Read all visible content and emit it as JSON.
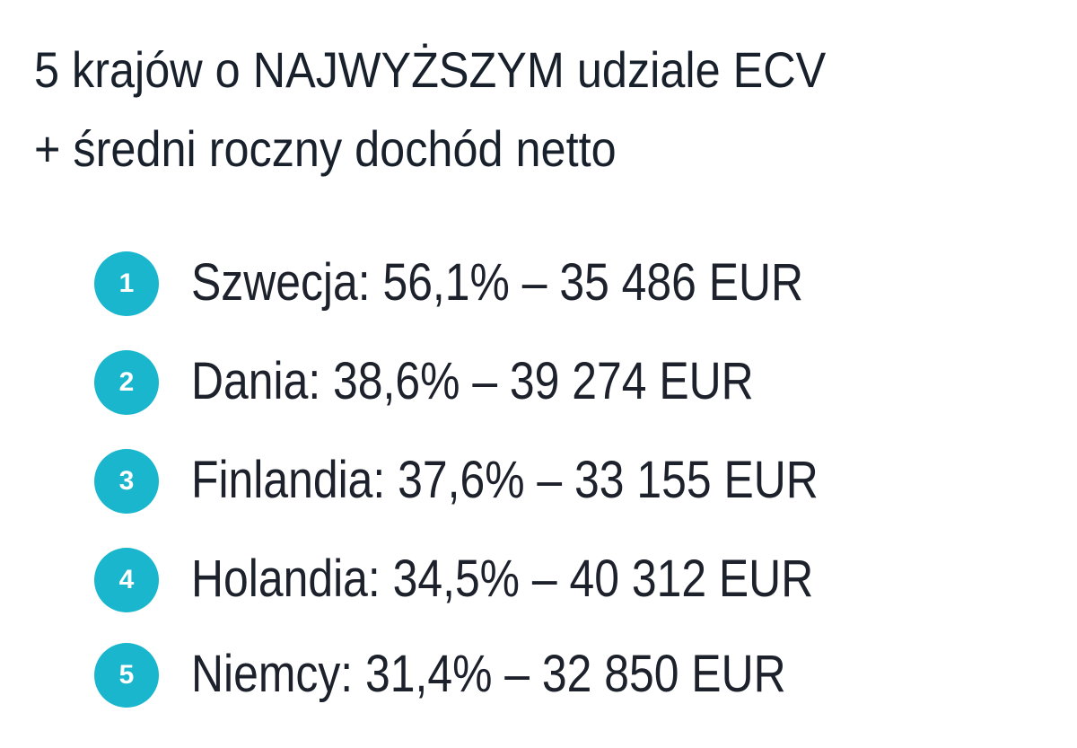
{
  "header": {
    "title": [
      "5 krajów o NAJWYŻSZYM udziale ECV",
      "+ średni roczny dochód netto"
    ]
  },
  "list": {
    "items": [
      {
        "number": "1",
        "text": "Szwecja: 56,1% – 35 486 EUR"
      },
      {
        "number": "2",
        "text": "Dania: 38,6% – 39 274 EUR"
      },
      {
        "number": "3",
        "text": "Finlandia: 37,6% – 33 155 EUR"
      },
      {
        "number": "4",
        "text": "Holandia: 34,5% – 40 312 EUR"
      },
      {
        "number": "5",
        "text": "Niemcy: 31,4% – 32 850 EUR"
      }
    ]
  }
}
